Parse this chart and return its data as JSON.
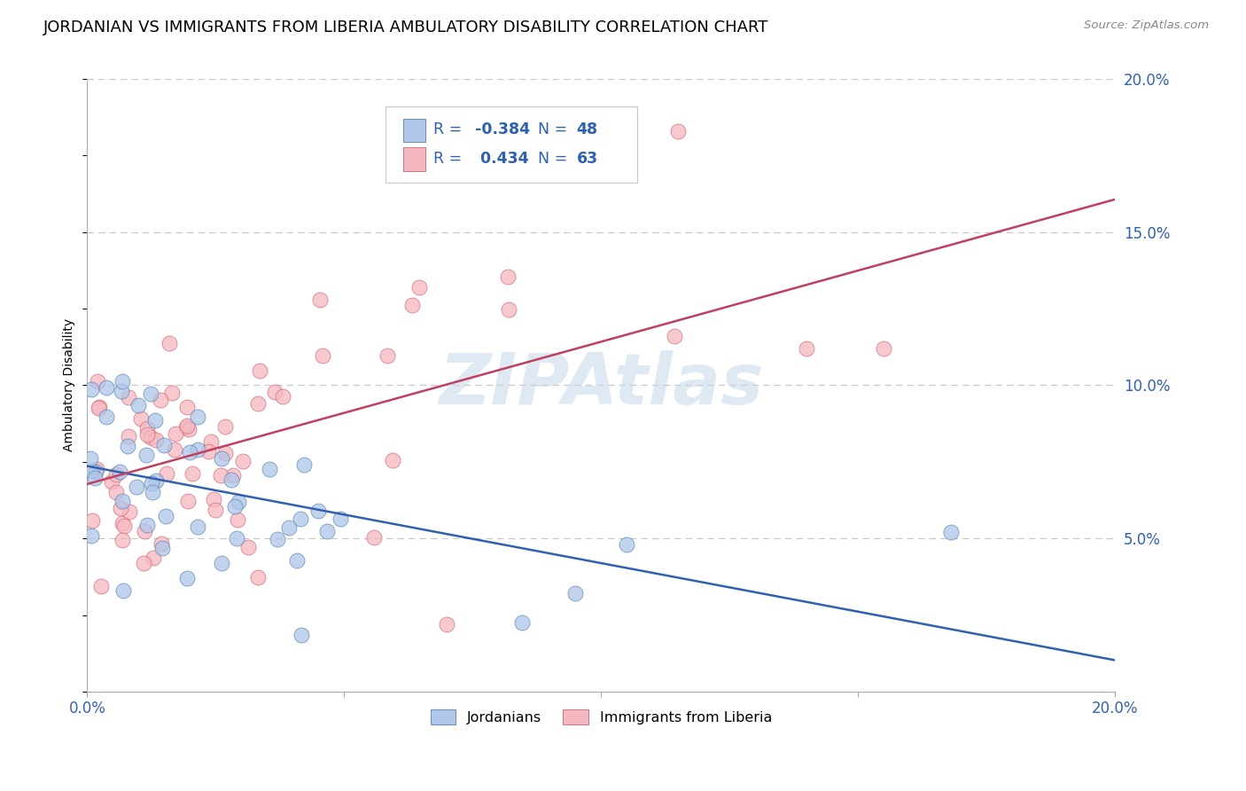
{
  "title": "JORDANIAN VS IMMIGRANTS FROM LIBERIA AMBULATORY DISABILITY CORRELATION CHART",
  "source": "Source: ZipAtlas.com",
  "ylabel": "Ambulatory Disability",
  "xlim": [
    0.0,
    0.2
  ],
  "ylim": [
    0.0,
    0.2
  ],
  "ytick_labels": [
    "5.0%",
    "10.0%",
    "15.0%",
    "20.0%"
  ],
  "ytick_values": [
    0.05,
    0.1,
    0.15,
    0.2
  ],
  "grid_color": "#c8c8c8",
  "background_color": "#ffffff",
  "jordanians": {
    "color": "#aec6e8",
    "edge_color": "#5580b0",
    "line_color": "#3060b0",
    "R": -0.384,
    "N": 48,
    "label": "Jordanians"
  },
  "liberia": {
    "color": "#f5b8c0",
    "edge_color": "#d06070",
    "line_color": "#c04060",
    "R": 0.434,
    "N": 63,
    "label": "Immigrants from Liberia"
  },
  "watermark": "ZIPAtlas",
  "watermark_color": "#c5d8ec",
  "legend_color": "#3060b0",
  "title_fontsize": 13,
  "axis_label_fontsize": 10,
  "tick_fontsize": 12
}
